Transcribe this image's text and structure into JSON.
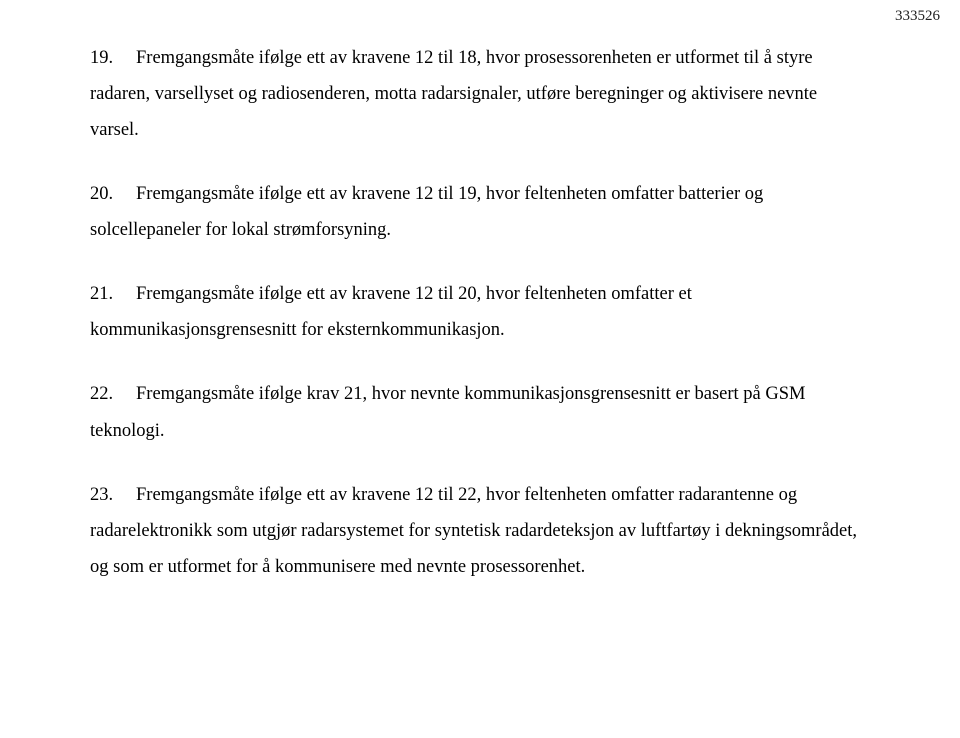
{
  "page_number": "333526",
  "font_family": "Times New Roman",
  "font_size_pt": 14,
  "text_color": "#000000",
  "background_color": "#ffffff",
  "page_number_color": "#212121",
  "claims": [
    {
      "number": "19.",
      "text": "Fremgangsmåte ifølge ett av kravene 12 til 18, hvor prosessorenheten er utformet til å styre radaren, varsellyset og radiosenderen, motta radarsignaler, utføre beregninger og aktivisere nevnte varsel."
    },
    {
      "number": "20.",
      "text": "Fremgangsmåte ifølge ett av kravene 12 til 19, hvor feltenheten omfatter batterier og solcellepaneler for lokal strømforsyning."
    },
    {
      "number": "21.",
      "text": "Fremgangsmåte ifølge ett av kravene 12 til 20, hvor feltenheten omfatter et kommunikasjonsgrensesnitt for eksternkommunikasjon."
    },
    {
      "number": "22.",
      "text": "Fremgangsmåte ifølge krav 21, hvor nevnte kommunikasjonsgrensesnitt er basert på GSM teknologi."
    },
    {
      "number": "23.",
      "text": "Fremgangsmåte ifølge ett av kravene 12 til 22, hvor feltenheten omfatter radarantenne og radarelektronikk som utgjør radarsystemet for syntetisk radardeteksjon av luftfartøy i dekningsområdet, og som er utformet for å kommunisere med nevnte prosessorenhet."
    }
  ]
}
